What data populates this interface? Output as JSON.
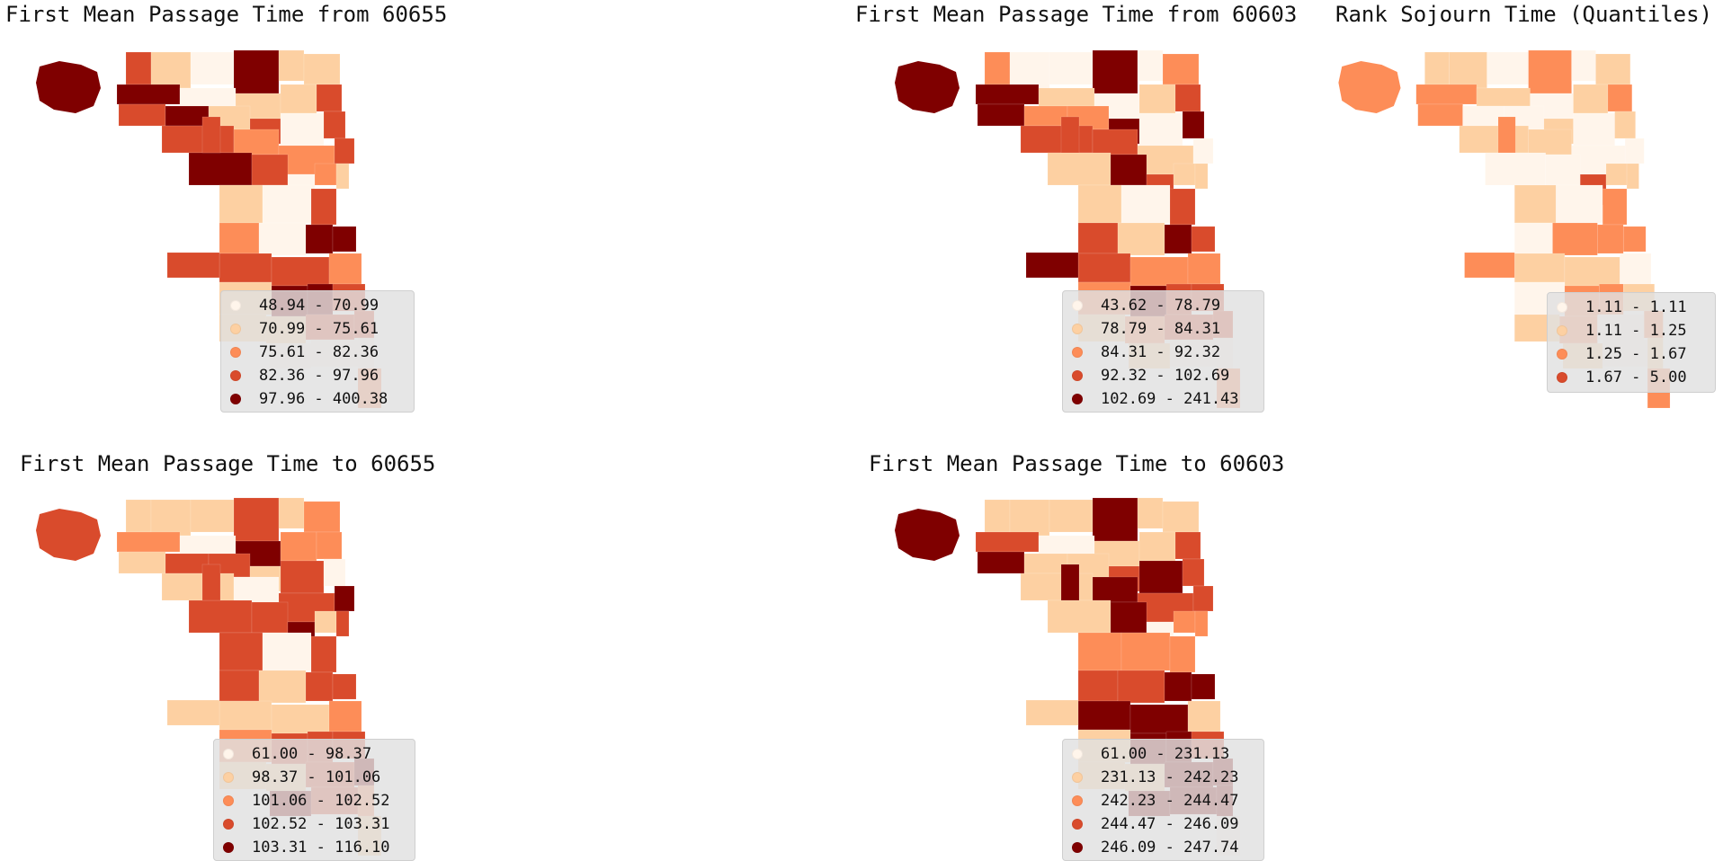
{
  "colors": [
    "#fff5eb",
    "#fdd0a2",
    "#fd8d58",
    "#d94b2c",
    "#7f0000"
  ],
  "panels": [
    {
      "title": "First Mean Passage Time from 60655",
      "legend": [
        "48.94 - 70.99",
        "70.99 - 75.61",
        "75.61 - 82.36",
        "82.36 - 97.96",
        "97.96 - 400.38"
      ],
      "classes": [
        3,
        1,
        0,
        4,
        1,
        1,
        4,
        0,
        1,
        1,
        3,
        3,
        4,
        1,
        3,
        0,
        3,
        3,
        2,
        2,
        3,
        4,
        3,
        0,
        2,
        1,
        1,
        0,
        3,
        2,
        0,
        4,
        4,
        3,
        3,
        2,
        1,
        4,
        4,
        3,
        1,
        1,
        3,
        3,
        0,
        0,
        0,
        3,
        3,
        2
      ]
    },
    {
      "title": "First Mean Passage Time from 60603",
      "legend": [
        "43.62 - 78.79",
        "78.79 - 84.31",
        "84.31 - 92.32",
        "92.32 - 102.69",
        "102.69 - 241.43"
      ],
      "classes": [
        2,
        0,
        0,
        4,
        0,
        2,
        4,
        1,
        0,
        1,
        3,
        4,
        2,
        2,
        4,
        0,
        4,
        3,
        3,
        1,
        0,
        1,
        4,
        3,
        1,
        1,
        1,
        0,
        3,
        3,
        1,
        4,
        3,
        3,
        2,
        2,
        2,
        4,
        3,
        3,
        1,
        2,
        3,
        3,
        1,
        0,
        0,
        3,
        4,
        2
      ]
    },
    {
      "title": "Rank Sojourn Time (Quantiles)",
      "legend": [
        "1.11 - 1.11",
        "1.11 - 1.25",
        "1.25 - 1.67",
        "1.67 - 5.00",
        ""
      ],
      "classes": [
        1,
        1,
        0,
        2,
        0,
        1,
        2,
        1,
        0,
        1,
        2,
        2,
        0,
        0,
        1,
        0,
        1,
        1,
        1,
        0,
        0,
        0,
        0,
        3,
        1,
        1,
        1,
        0,
        2,
        0,
        2,
        2,
        2,
        1,
        1,
        0,
        0,
        2,
        2,
        1,
        1,
        2,
        0,
        2,
        1,
        0,
        1,
        2,
        2,
        2
      ]
    },
    {
      "title": "First Mean Passage Time to 60655",
      "legend": [
        "61.00 - 98.37",
        "98.37 - 101.06",
        "101.06 - 102.52",
        "102.52 - 103.31",
        "103.31 - 116.10"
      ],
      "classes": [
        1,
        1,
        1,
        3,
        1,
        2,
        2,
        0,
        4,
        2,
        2,
        1,
        3,
        3,
        1,
        3,
        0,
        1,
        0,
        3,
        4,
        3,
        3,
        4,
        1,
        3,
        3,
        0,
        3,
        3,
        1,
        3,
        3,
        1,
        1,
        2,
        2,
        3,
        3,
        3,
        1,
        1,
        3,
        4,
        4,
        3,
        2,
        3,
        1,
        1
      ]
    },
    {
      "title": "First Mean Passage Time to 60603",
      "legend": [
        "61.00 - 231.13",
        "231.13 - 242.23",
        "242.23 - 244.47",
        "244.47 - 246.09",
        "246.09 - 247.74"
      ],
      "classes": [
        1,
        1,
        1,
        4,
        1,
        1,
        3,
        0,
        1,
        1,
        3,
        4,
        1,
        1,
        3,
        4,
        3,
        1,
        4,
        3,
        3,
        1,
        4,
        0,
        2,
        2,
        2,
        2,
        2,
        3,
        3,
        4,
        4,
        4,
        4,
        1,
        1,
        4,
        4,
        3,
        1,
        1,
        4,
        4,
        4,
        4,
        4,
        4,
        1,
        0
      ]
    }
  ]
}
